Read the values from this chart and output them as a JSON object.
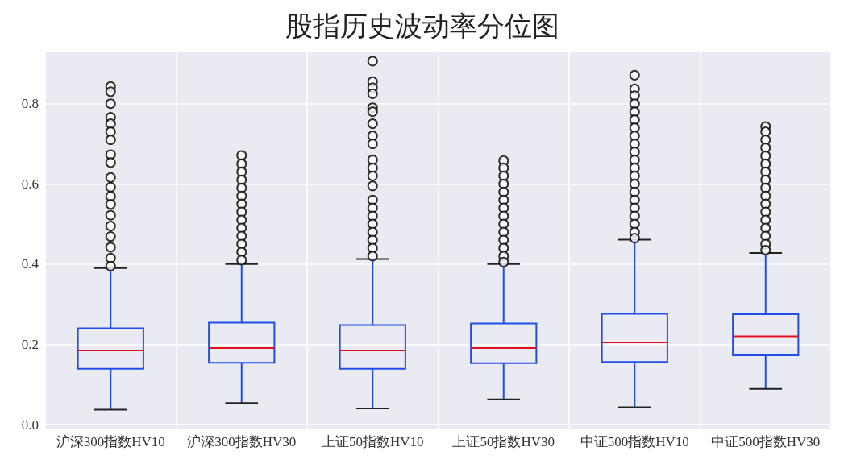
{
  "chart_data": {
    "type": "box",
    "title": "股指历史波动率分位图",
    "categories": [
      "沪深300指数HV10",
      "沪深300指数HV30",
      "上证50指数HV10",
      "上证50指数HV30",
      "中证500指数HV10",
      "中证500指数HV30"
    ],
    "series": [
      {
        "color": "#1f4fe8",
        "boxes": [
          {
            "low": 0.037,
            "q1": 0.139,
            "median": 0.185,
            "q3": 0.24,
            "high": 0.39,
            "outliers": [
              0.843,
              0.83,
              0.8,
              0.766,
              0.75,
              0.73,
              0.71,
              0.673,
              0.653,
              0.616,
              0.592,
              0.569,
              0.549,
              0.522,
              0.495,
              0.469,
              0.442,
              0.415,
              0.395
            ]
          },
          {
            "low": 0.054,
            "q1": 0.154,
            "median": 0.191,
            "q3": 0.254,
            "high": 0.4,
            "outliers": [
              0.671,
              0.65,
              0.63,
              0.61,
              0.59,
              0.57,
              0.55,
              0.53,
              0.51,
              0.49,
              0.47,
              0.45,
              0.43,
              0.41
            ]
          },
          {
            "low": 0.04,
            "q1": 0.139,
            "median": 0.185,
            "q3": 0.248,
            "high": 0.413,
            "outliers": [
              0.906,
              0.855,
              0.84,
              0.825,
              0.79,
              0.78,
              0.75,
              0.72,
              0.7,
              0.66,
              0.64,
              0.62,
              0.595,
              0.56,
              0.54,
              0.52,
              0.5,
              0.48,
              0.46,
              0.44,
              0.42
            ]
          },
          {
            "low": 0.063,
            "q1": 0.153,
            "median": 0.191,
            "q3": 0.252,
            "high": 0.4,
            "outliers": [
              0.658,
              0.64,
              0.62,
              0.6,
              0.58,
              0.56,
              0.54,
              0.52,
              0.5,
              0.48,
              0.46,
              0.44,
              0.42,
              0.405
            ]
          },
          {
            "low": 0.043,
            "q1": 0.156,
            "median": 0.205,
            "q3": 0.276,
            "high": 0.461,
            "outliers": [
              0.871,
              0.837,
              0.82,
              0.8,
              0.78,
              0.76,
              0.74,
              0.72,
              0.7,
              0.68,
              0.66,
              0.64,
              0.62,
              0.6,
              0.58,
              0.56,
              0.54,
              0.52,
              0.5,
              0.48,
              0.465
            ]
          },
          {
            "low": 0.089,
            "q1": 0.173,
            "median": 0.22,
            "q3": 0.275,
            "high": 0.428,
            "outliers": [
              0.743,
              0.73,
              0.71,
              0.69,
              0.67,
              0.65,
              0.63,
              0.61,
              0.59,
              0.57,
              0.55,
              0.53,
              0.51,
              0.49,
              0.47,
              0.45,
              0.435
            ]
          }
        ]
      }
    ],
    "ylim": [
      -0.01,
      0.93
    ],
    "yticks": [
      {
        "value": 0,
        "label": "0.0"
      },
      {
        "value": 0.2,
        "label": "0.2"
      },
      {
        "value": 0.4,
        "label": "0.4"
      },
      {
        "value": 0.6,
        "label": "0.6"
      },
      {
        "value": 0.8,
        "label": "0.8"
      }
    ],
    "grid": true,
    "marker": "circle"
  }
}
